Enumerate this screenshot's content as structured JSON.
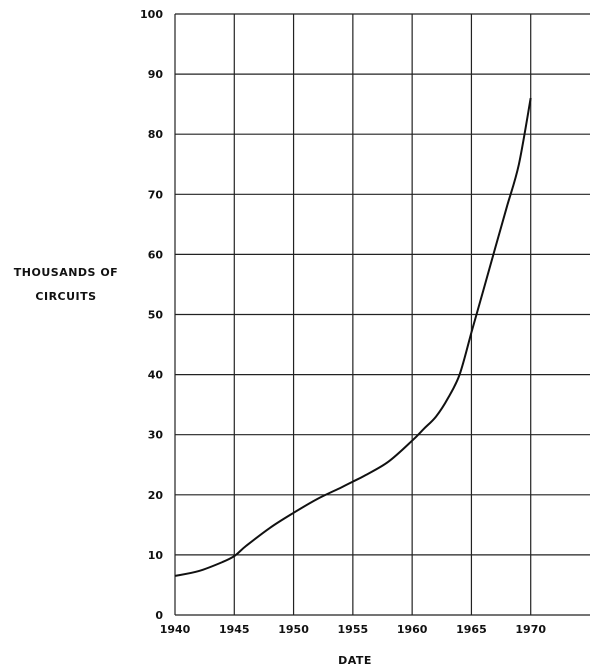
{
  "chart_data": {
    "type": "line",
    "xlabel": "DATE",
    "ylabel_lines": [
      "THOUSANDS OF",
      "CIRCUITS"
    ],
    "xlim": [
      1940,
      1975
    ],
    "ylim": [
      0,
      100
    ],
    "x_ticks": [
      1940,
      1945,
      1950,
      1955,
      1960,
      1965,
      1970
    ],
    "y_ticks": [
      0,
      10,
      20,
      30,
      40,
      50,
      60,
      70,
      80,
      90,
      100
    ],
    "y_tick_labels": [
      "0",
      "10",
      "20",
      "30",
      "40",
      "50",
      "60",
      "70",
      "80",
      "90",
      "100"
    ],
    "grid": true,
    "colors": {
      "line": "#111111",
      "grid": "#222222",
      "background": "#ffffff"
    },
    "series": [
      {
        "x": [
          1940,
          1942,
          1944,
          1945,
          1946,
          1948,
          1950,
          1952,
          1954,
          1955,
          1956,
          1958,
          1960,
          1961,
          1962,
          1963,
          1964,
          1965,
          1966,
          1967,
          1968,
          1969,
          1970
        ],
        "y": [
          6.5,
          7.3,
          8.8,
          9.8,
          11.5,
          14.5,
          17,
          19.3,
          21.2,
          22.2,
          23.2,
          25.5,
          29,
          31,
          33,
          36,
          40,
          47,
          54,
          61,
          68,
          75,
          86
        ]
      }
    ]
  }
}
